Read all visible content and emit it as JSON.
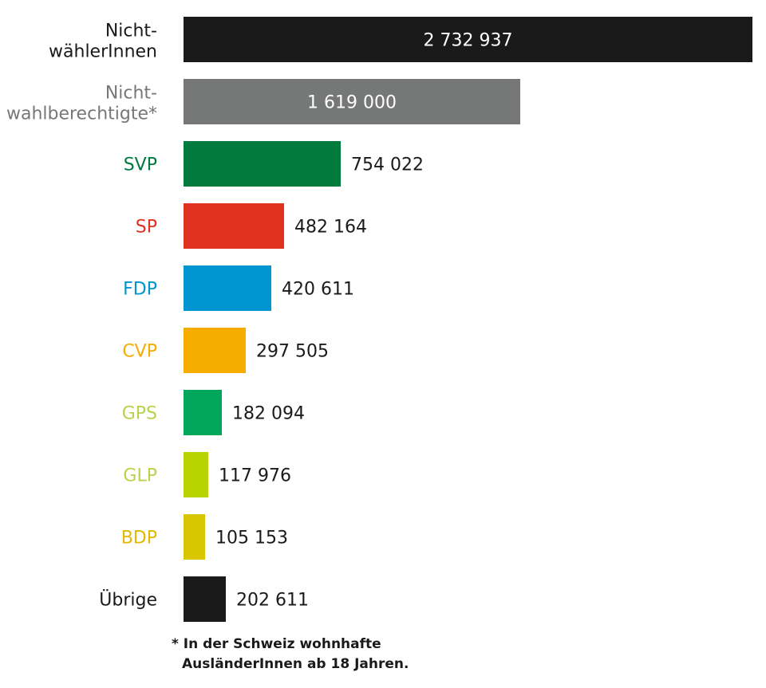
{
  "chart_data": {
    "type": "bar",
    "orientation": "horizontal",
    "title": "",
    "xlabel": "",
    "ylabel": "",
    "grid": false,
    "xlim": [
      0,
      2732937
    ],
    "categories": [
      [
        "Nicht-",
        "wählerInnen"
      ],
      [
        "Nicht-",
        "wahlberechtigte*"
      ],
      [
        "SVP"
      ],
      [
        "SP"
      ],
      [
        "FDP"
      ],
      [
        "CVP"
      ],
      [
        "GPS"
      ],
      [
        "GLP"
      ],
      [
        "BDP"
      ],
      [
        "Übrige"
      ]
    ],
    "values": [
      2732937,
      1619000,
      754022,
      482164,
      420611,
      297505,
      182094,
      117976,
      105153,
      202611
    ],
    "value_labels": [
      "2 732 937",
      "1 619 000",
      "754 022",
      "482 164",
      "420 611",
      "297 505",
      "182 094",
      "117 976",
      "105 153",
      "202 611"
    ],
    "bar_colors": [
      "#1a1a1a",
      "#767878",
      "#007a3d",
      "#e0301e",
      "#0095d0",
      "#f7ad00",
      "#00a65a",
      "#b8d300",
      "#d8c600",
      "#1a1a1a"
    ],
    "label_colors": [
      "#1a1a1a",
      "#777777",
      "#007a3d",
      "#e0301e",
      "#0095d0",
      "#f7ad00",
      "#b7d34a",
      "#b7d34a",
      "#e4b800",
      "#1a1a1a"
    ],
    "value_label_inside": [
      true,
      true,
      false,
      false,
      false,
      false,
      false,
      false,
      false,
      false
    ]
  },
  "footnote": {
    "line1": "* In der Schweiz wohnhafte",
    "line2": "AusländerInnen ab 18 Jahren."
  }
}
